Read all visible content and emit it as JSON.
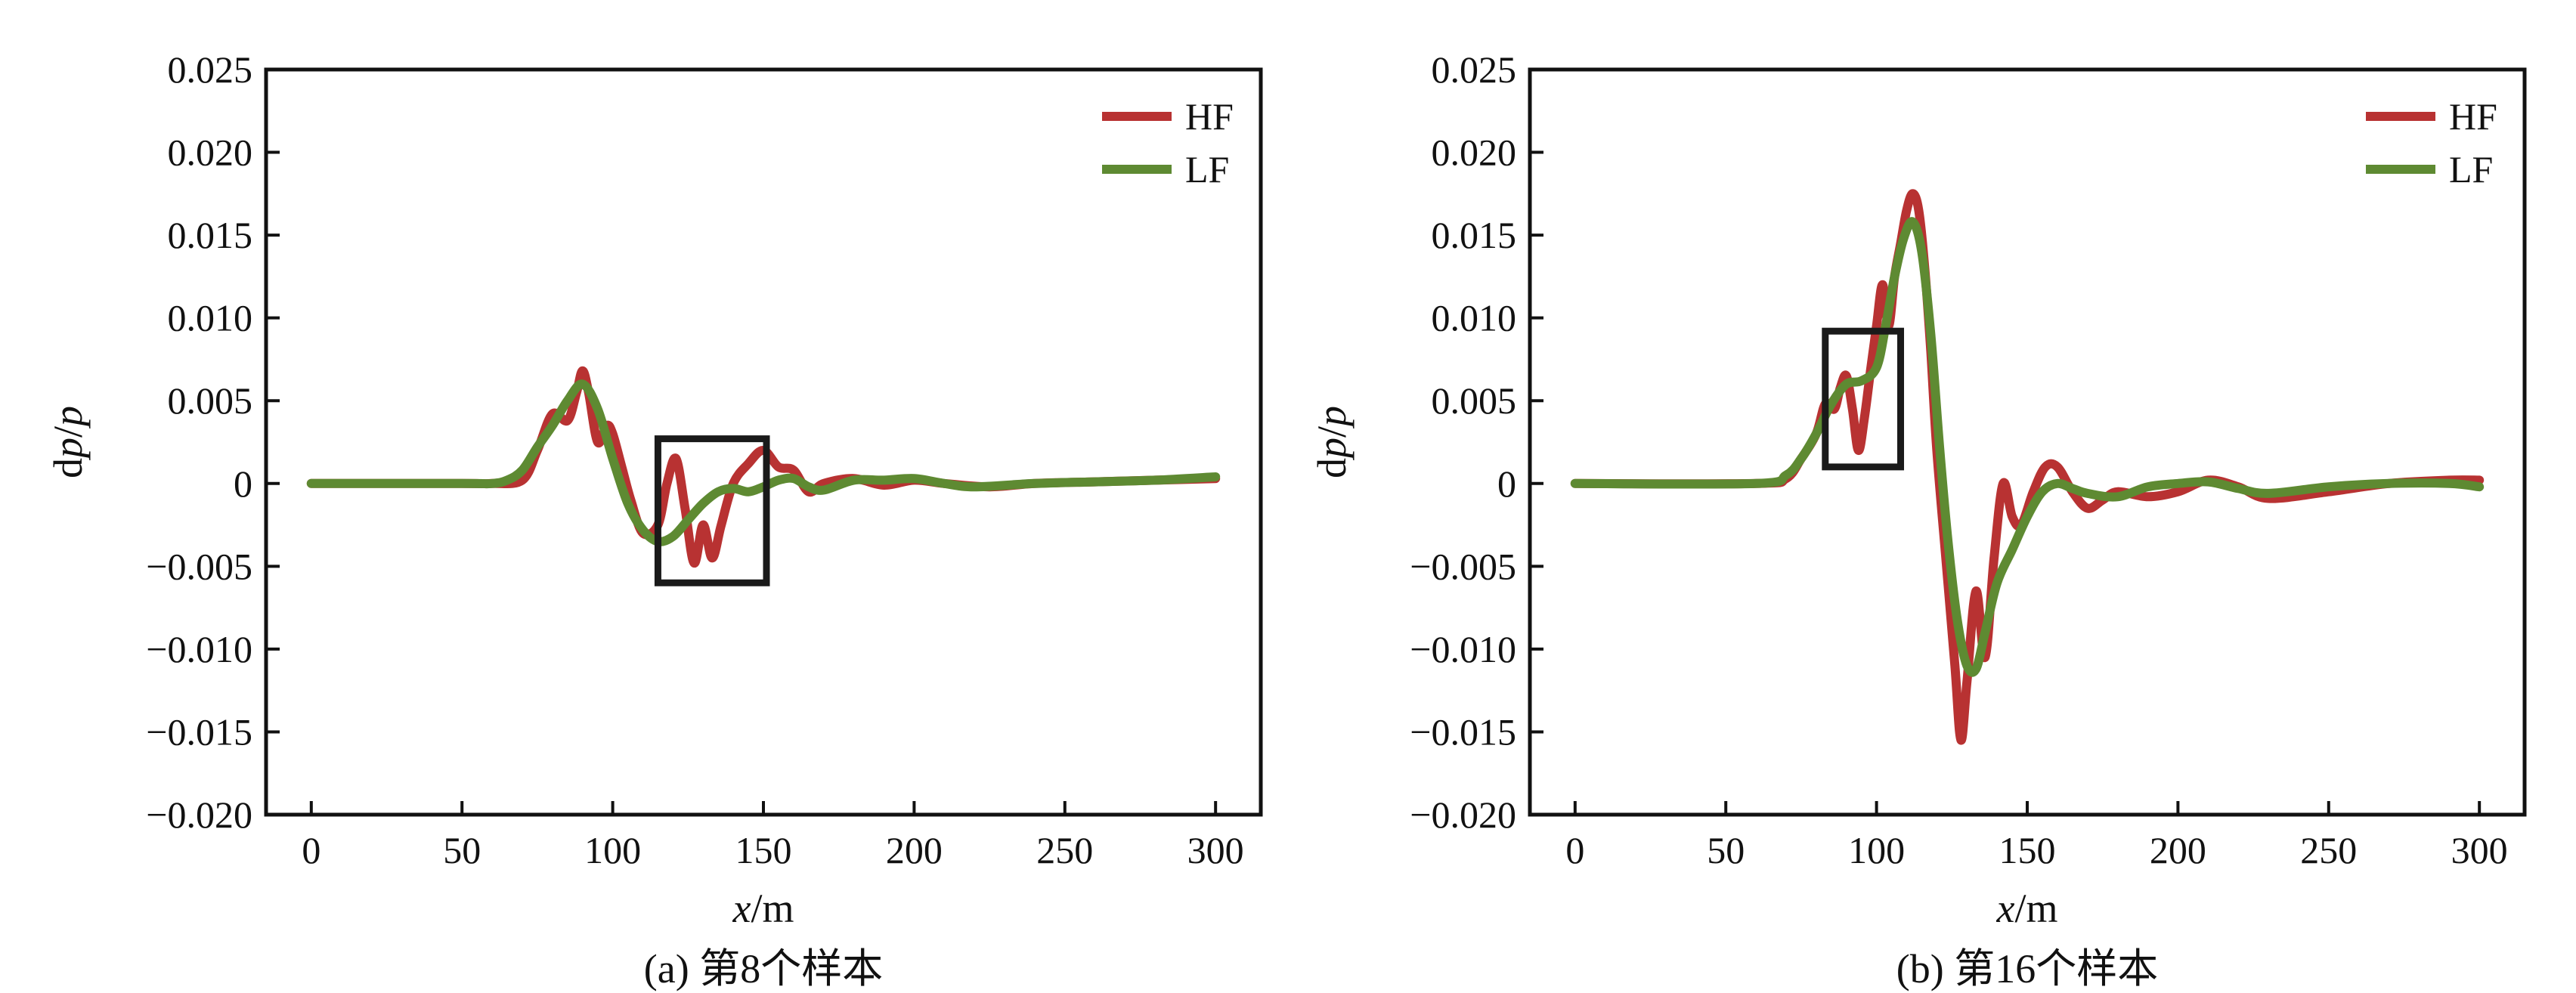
{
  "chart_data": [
    {
      "type": "line",
      "caption": "(a) 第8个样本",
      "xlabel": "x/m",
      "ylabel": "dp/p",
      "xlim": [
        -15,
        315
      ],
      "ylim": [
        -0.02,
        0.025
      ],
      "xticks": [
        0,
        50,
        100,
        150,
        200,
        250,
        300
      ],
      "yticks": [
        -0.02,
        -0.015,
        -0.01,
        -0.005,
        0,
        0.005,
        0.01,
        0.015,
        0.02,
        0.025
      ],
      "xtick_labels": [
        "0",
        "50",
        "100",
        "150",
        "200",
        "250",
        "300"
      ],
      "ytick_labels": [
        "−0.020",
        "−0.015",
        "−0.010",
        "−0.005",
        "0",
        "0.005",
        "0.010",
        "0.015",
        "0.020",
        "0.025"
      ],
      "grid": false,
      "legend_position": "top-right",
      "highlight_box": {
        "x": [
          115,
          151
        ],
        "y": [
          -0.006,
          0.0027
        ]
      },
      "series": [
        {
          "name": "HF",
          "color": "#b83232",
          "x": [
            0,
            50,
            60,
            70,
            75,
            80,
            85,
            88,
            90,
            92,
            95,
            98,
            100,
            103,
            106,
            110,
            115,
            118,
            121,
            124,
            127,
            130,
            133,
            136,
            140,
            145,
            150,
            155,
            160,
            165,
            170,
            180,
            190,
            200,
            210,
            225,
            240,
            260,
            280,
            300
          ],
          "y": [
            0,
            0,
            0,
            0.0002,
            0.002,
            0.0042,
            0.0038,
            0.0055,
            0.0068,
            0.0055,
            0.0025,
            0.0035,
            0.003,
            0.001,
            -0.001,
            -0.003,
            -0.0025,
            0,
            0.0015,
            -0.0015,
            -0.0048,
            -0.0025,
            -0.0045,
            -0.0025,
            0,
            0.0012,
            0.002,
            0.001,
            0.0008,
            -0.0005,
            0,
            0.0003,
            -0.0001,
            0.0002,
            0,
            -0.0002,
            0,
            0.0001,
            0.0002,
            0.0003
          ]
        },
        {
          "name": "LF",
          "color": "#5e8a32",
          "x": [
            0,
            50,
            60,
            65,
            70,
            75,
            80,
            85,
            90,
            95,
            100,
            105,
            110,
            115,
            120,
            125,
            130,
            135,
            140,
            145,
            150,
            155,
            160,
            165,
            170,
            180,
            190,
            200,
            210,
            220,
            240,
            260,
            280,
            300
          ],
          "y": [
            0,
            0,
            0,
            0.0002,
            0.0008,
            0.0022,
            0.0035,
            0.005,
            0.006,
            0.0045,
            0.0015,
            -0.0012,
            -0.0028,
            -0.0035,
            -0.0032,
            -0.0022,
            -0.0012,
            -0.0005,
            -0.0003,
            -0.0005,
            -0.0002,
            0.0002,
            0.0003,
            -0.0002,
            -0.0004,
            0.0002,
            0.0002,
            0.0003,
            0,
            -0.0002,
            0,
            0.0001,
            0.0002,
            0.0004
          ]
        }
      ]
    },
    {
      "type": "line",
      "caption": "(b) 第16个样本",
      "xlabel": "x/m",
      "ylabel": "dp/p",
      "xlim": [
        -15,
        315
      ],
      "ylim": [
        -0.02,
        0.025
      ],
      "xticks": [
        0,
        50,
        100,
        150,
        200,
        250,
        300
      ],
      "yticks": [
        -0.02,
        -0.015,
        -0.01,
        -0.005,
        0,
        0.005,
        0.01,
        0.015,
        0.02,
        0.025
      ],
      "xtick_labels": [
        "0",
        "50",
        "100",
        "150",
        "200",
        "250",
        "300"
      ],
      "ytick_labels": [
        "−0.020",
        "−0.015",
        "−0.010",
        "−0.005",
        "0",
        "0.005",
        "0.010",
        "0.015",
        "0.020",
        "0.025"
      ],
      "grid": false,
      "legend_position": "top-right",
      "highlight_box": {
        "x": [
          83,
          108
        ],
        "y": [
          0.001,
          0.0092
        ]
      },
      "series": [
        {
          "name": "HF",
          "color": "#b83232",
          "x": [
            0,
            60,
            70,
            75,
            80,
            83,
            86,
            88,
            90,
            92,
            94,
            96,
            98,
            100,
            102,
            104,
            106,
            108,
            110,
            112,
            114,
            116,
            118,
            120,
            123,
            126,
            128,
            130,
            133,
            136,
            139,
            142,
            145,
            148,
            152,
            156,
            160,
            165,
            170,
            175,
            180,
            190,
            200,
            210,
            220,
            230,
            250,
            270,
            290,
            300
          ],
          "y": [
            0,
            0,
            0.0003,
            0.0015,
            0.003,
            0.0048,
            0.0045,
            0.0058,
            0.0065,
            0.0045,
            0.002,
            0.004,
            0.0068,
            0.0095,
            0.012,
            0.0095,
            0.0125,
            0.0145,
            0.0165,
            0.0175,
            0.0165,
            0.013,
            0.008,
            0.002,
            -0.0045,
            -0.011,
            -0.0155,
            -0.012,
            -0.0065,
            -0.0105,
            -0.0045,
            0,
            -0.002,
            -0.0025,
            -0.0005,
            0.001,
            0.001,
            -0.0005,
            -0.0015,
            -0.001,
            -0.0005,
            -0.0008,
            -0.0005,
            0.0002,
            -0.0002,
            -0.0009,
            -0.0005,
            0,
            0.0002,
            0.0002
          ]
        },
        {
          "name": "LF",
          "color": "#5e8a32",
          "x": [
            0,
            60,
            70,
            75,
            80,
            85,
            90,
            95,
            100,
            103,
            106,
            109,
            112,
            115,
            118,
            121,
            124,
            127,
            130,
            133,
            136,
            140,
            145,
            150,
            155,
            160,
            165,
            170,
            180,
            190,
            200,
            210,
            220,
            230,
            250,
            270,
            290,
            300
          ],
          "y": [
            0,
            0,
            0.0005,
            0.0015,
            0.003,
            0.0048,
            0.006,
            0.0062,
            0.007,
            0.0095,
            0.0125,
            0.0148,
            0.0158,
            0.014,
            0.009,
            0.002,
            -0.004,
            -0.0085,
            -0.011,
            -0.0112,
            -0.009,
            -0.006,
            -0.004,
            -0.002,
            -0.0005,
            0,
            -0.0003,
            -0.0006,
            -0.0008,
            -0.0002,
            0,
            0.0001,
            -0.0003,
            -0.0006,
            -0.0002,
            0,
            0,
            -0.0002
          ]
        }
      ]
    }
  ]
}
